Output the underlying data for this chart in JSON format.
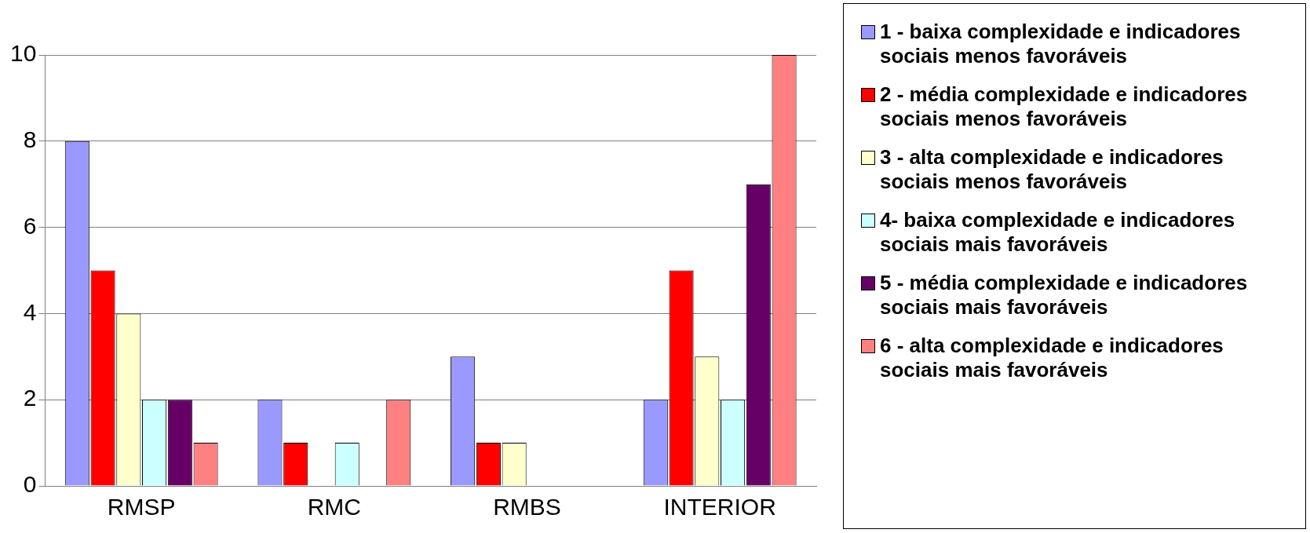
{
  "chart_data": {
    "type": "bar",
    "categories": [
      "RMSP",
      "RMC",
      "RMBS",
      "INTERIOR"
    ],
    "series": [
      {
        "name": "1 - baixa complexidade e indicadores sociais menos favoráveis",
        "color": "#9999ff",
        "values": [
          8,
          2,
          3,
          2
        ]
      },
      {
        "name": "2 - média complexidade e indicadores sociais menos favoráveis",
        "color": "#ff0000",
        "values": [
          5,
          1,
          1,
          5
        ]
      },
      {
        "name": "3 - alta complexidade e indicadores sociais menos favoráveis",
        "color": "#ffffcc",
        "values": [
          4,
          0,
          1,
          3
        ]
      },
      {
        "name": "4- baixa complexidade e indicadores sociais mais favoráveis",
        "color": "#ccffff",
        "values": [
          2,
          1,
          0,
          2
        ]
      },
      {
        "name": "5 - média complexidade e indicadores sociais mais favoráveis",
        "color": "#660066",
        "values": [
          2,
          0,
          0,
          7
        ]
      },
      {
        "name": "6 - alta complexidade e indicadores sociais mais favoráveis",
        "color": "#ff8080",
        "values": [
          1,
          2,
          0,
          10
        ]
      }
    ],
    "ylim": [
      0,
      10
    ],
    "yticks": [
      0,
      2,
      4,
      6,
      8,
      10
    ],
    "grid": "y",
    "legend": "right"
  }
}
